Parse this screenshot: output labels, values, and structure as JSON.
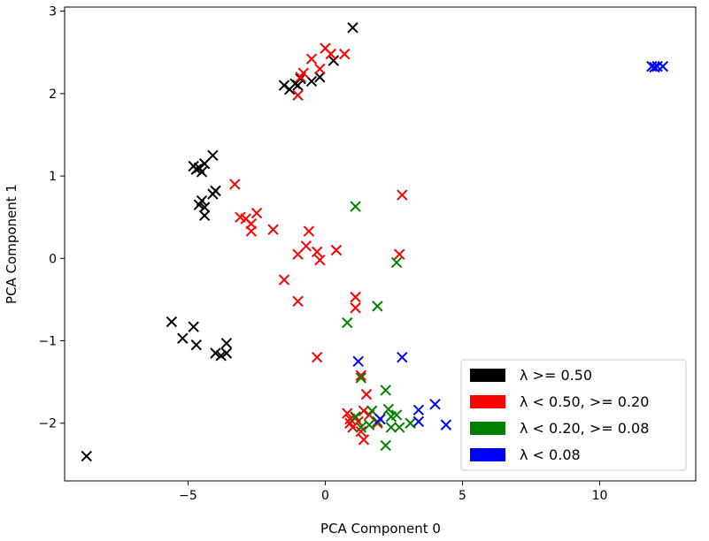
{
  "chart_data": {
    "type": "scatter",
    "title": "",
    "xlabel": "PCA Component 0",
    "ylabel": "PCA Component 1",
    "xlim": [
      -9.5,
      13.5
    ],
    "ylim": [
      -2.7,
      3.05
    ],
    "xticks": [
      -5,
      0,
      5,
      10
    ],
    "yticks": [
      -2,
      -1,
      0,
      1,
      2,
      3
    ],
    "xtick_labels": [
      "−5",
      "0",
      "5",
      "10"
    ],
    "ytick_labels": [
      "−2",
      "−1",
      "0",
      "1",
      "2",
      "3"
    ],
    "marker": "x",
    "grid": false,
    "legend_position": "lower-right",
    "series": [
      {
        "name": "λ >= 0.50",
        "color": "#000000",
        "points": [
          [
            1.0,
            2.8
          ],
          [
            0.3,
            2.4
          ],
          [
            -0.2,
            2.2
          ],
          [
            -0.5,
            2.15
          ],
          [
            -0.9,
            2.18
          ],
          [
            -1.0,
            2.1
          ],
          [
            -1.1,
            2.12
          ],
          [
            -1.3,
            2.05
          ],
          [
            -1.5,
            2.1
          ],
          [
            -4.1,
            1.25
          ],
          [
            -4.4,
            1.15
          ],
          [
            -4.6,
            1.1
          ],
          [
            -4.8,
            1.12
          ],
          [
            -4.5,
            1.05
          ],
          [
            -4.7,
            1.08
          ],
          [
            -4.0,
            0.82
          ],
          [
            -4.1,
            0.78
          ],
          [
            -4.5,
            0.7
          ],
          [
            -4.4,
            0.62
          ],
          [
            -4.6,
            0.65
          ],
          [
            -4.4,
            0.52
          ],
          [
            -5.6,
            -0.77
          ],
          [
            -5.2,
            -0.97
          ],
          [
            -4.8,
            -0.83
          ],
          [
            -4.7,
            -1.05
          ],
          [
            -3.6,
            -1.03
          ],
          [
            -4.0,
            -1.15
          ],
          [
            -3.8,
            -1.18
          ],
          [
            -3.6,
            -1.15
          ],
          [
            -8.7,
            -2.4
          ]
        ]
      },
      {
        "name": "λ < 0.50, >= 0.20",
        "color": "#ff0000",
        "points": [
          [
            0.0,
            2.55
          ],
          [
            0.2,
            2.48
          ],
          [
            0.7,
            2.48
          ],
          [
            -0.5,
            2.42
          ],
          [
            -0.2,
            2.3
          ],
          [
            -0.8,
            2.25
          ],
          [
            -0.9,
            2.2
          ],
          [
            -1.0,
            1.98
          ],
          [
            -3.3,
            0.9
          ],
          [
            -3.1,
            0.5
          ],
          [
            -2.9,
            0.48
          ],
          [
            -2.5,
            0.55
          ],
          [
            -2.7,
            0.42
          ],
          [
            -2.7,
            0.33
          ],
          [
            -1.9,
            0.35
          ],
          [
            -0.6,
            0.33
          ],
          [
            -0.7,
            0.15
          ],
          [
            -1.0,
            0.05
          ],
          [
            -0.3,
            0.08
          ],
          [
            -0.2,
            -0.02
          ],
          [
            0.4,
            0.1
          ],
          [
            2.8,
            0.77
          ],
          [
            2.7,
            0.05
          ],
          [
            -1.5,
            -0.26
          ],
          [
            -1.0,
            -0.52
          ],
          [
            1.1,
            -0.47
          ],
          [
            1.1,
            -0.6
          ],
          [
            -0.3,
            -1.2
          ],
          [
            1.3,
            -1.42
          ],
          [
            1.5,
            -1.65
          ],
          [
            0.8,
            -1.88
          ],
          [
            0.9,
            -1.95
          ],
          [
            1.1,
            -1.93
          ],
          [
            1.4,
            -1.85
          ],
          [
            1.6,
            -1.9
          ],
          [
            1.0,
            -2.05
          ],
          [
            1.2,
            -1.98
          ],
          [
            1.3,
            -2.1
          ],
          [
            1.4,
            -2.2
          ],
          [
            1.9,
            -2.0
          ],
          [
            2.0,
            -1.95
          ],
          [
            0.9,
            -2.0
          ]
        ]
      },
      {
        "name": "λ < 0.20, >= 0.08",
        "color": "#008000",
        "points": [
          [
            1.1,
            0.63
          ],
          [
            2.6,
            -0.05
          ],
          [
            1.9,
            -0.58
          ],
          [
            0.8,
            -0.78
          ],
          [
            1.3,
            -1.45
          ],
          [
            2.2,
            -1.6
          ],
          [
            1.7,
            -1.85
          ],
          [
            2.3,
            -1.83
          ],
          [
            2.6,
            -1.9
          ],
          [
            2.4,
            -1.92
          ],
          [
            1.9,
            -1.98
          ],
          [
            1.6,
            -2.02
          ],
          [
            2.4,
            -2.05
          ],
          [
            2.7,
            -2.05
          ],
          [
            3.1,
            -2.0
          ],
          [
            2.2,
            -2.27
          ],
          [
            1.1,
            -1.92
          ],
          [
            1.3,
            -2.05
          ]
        ]
      },
      {
        "name": "λ < 0.08",
        "color": "#0000ff",
        "points": [
          [
            11.9,
            2.33
          ],
          [
            12.0,
            2.32
          ],
          [
            12.1,
            2.33
          ],
          [
            12.3,
            2.33
          ],
          [
            1.2,
            -1.25
          ],
          [
            2.8,
            -1.2
          ],
          [
            4.0,
            -1.77
          ],
          [
            3.4,
            -1.84
          ],
          [
            3.4,
            -1.98
          ],
          [
            4.4,
            -2.02
          ],
          [
            2.0,
            -1.95
          ]
        ]
      }
    ]
  }
}
